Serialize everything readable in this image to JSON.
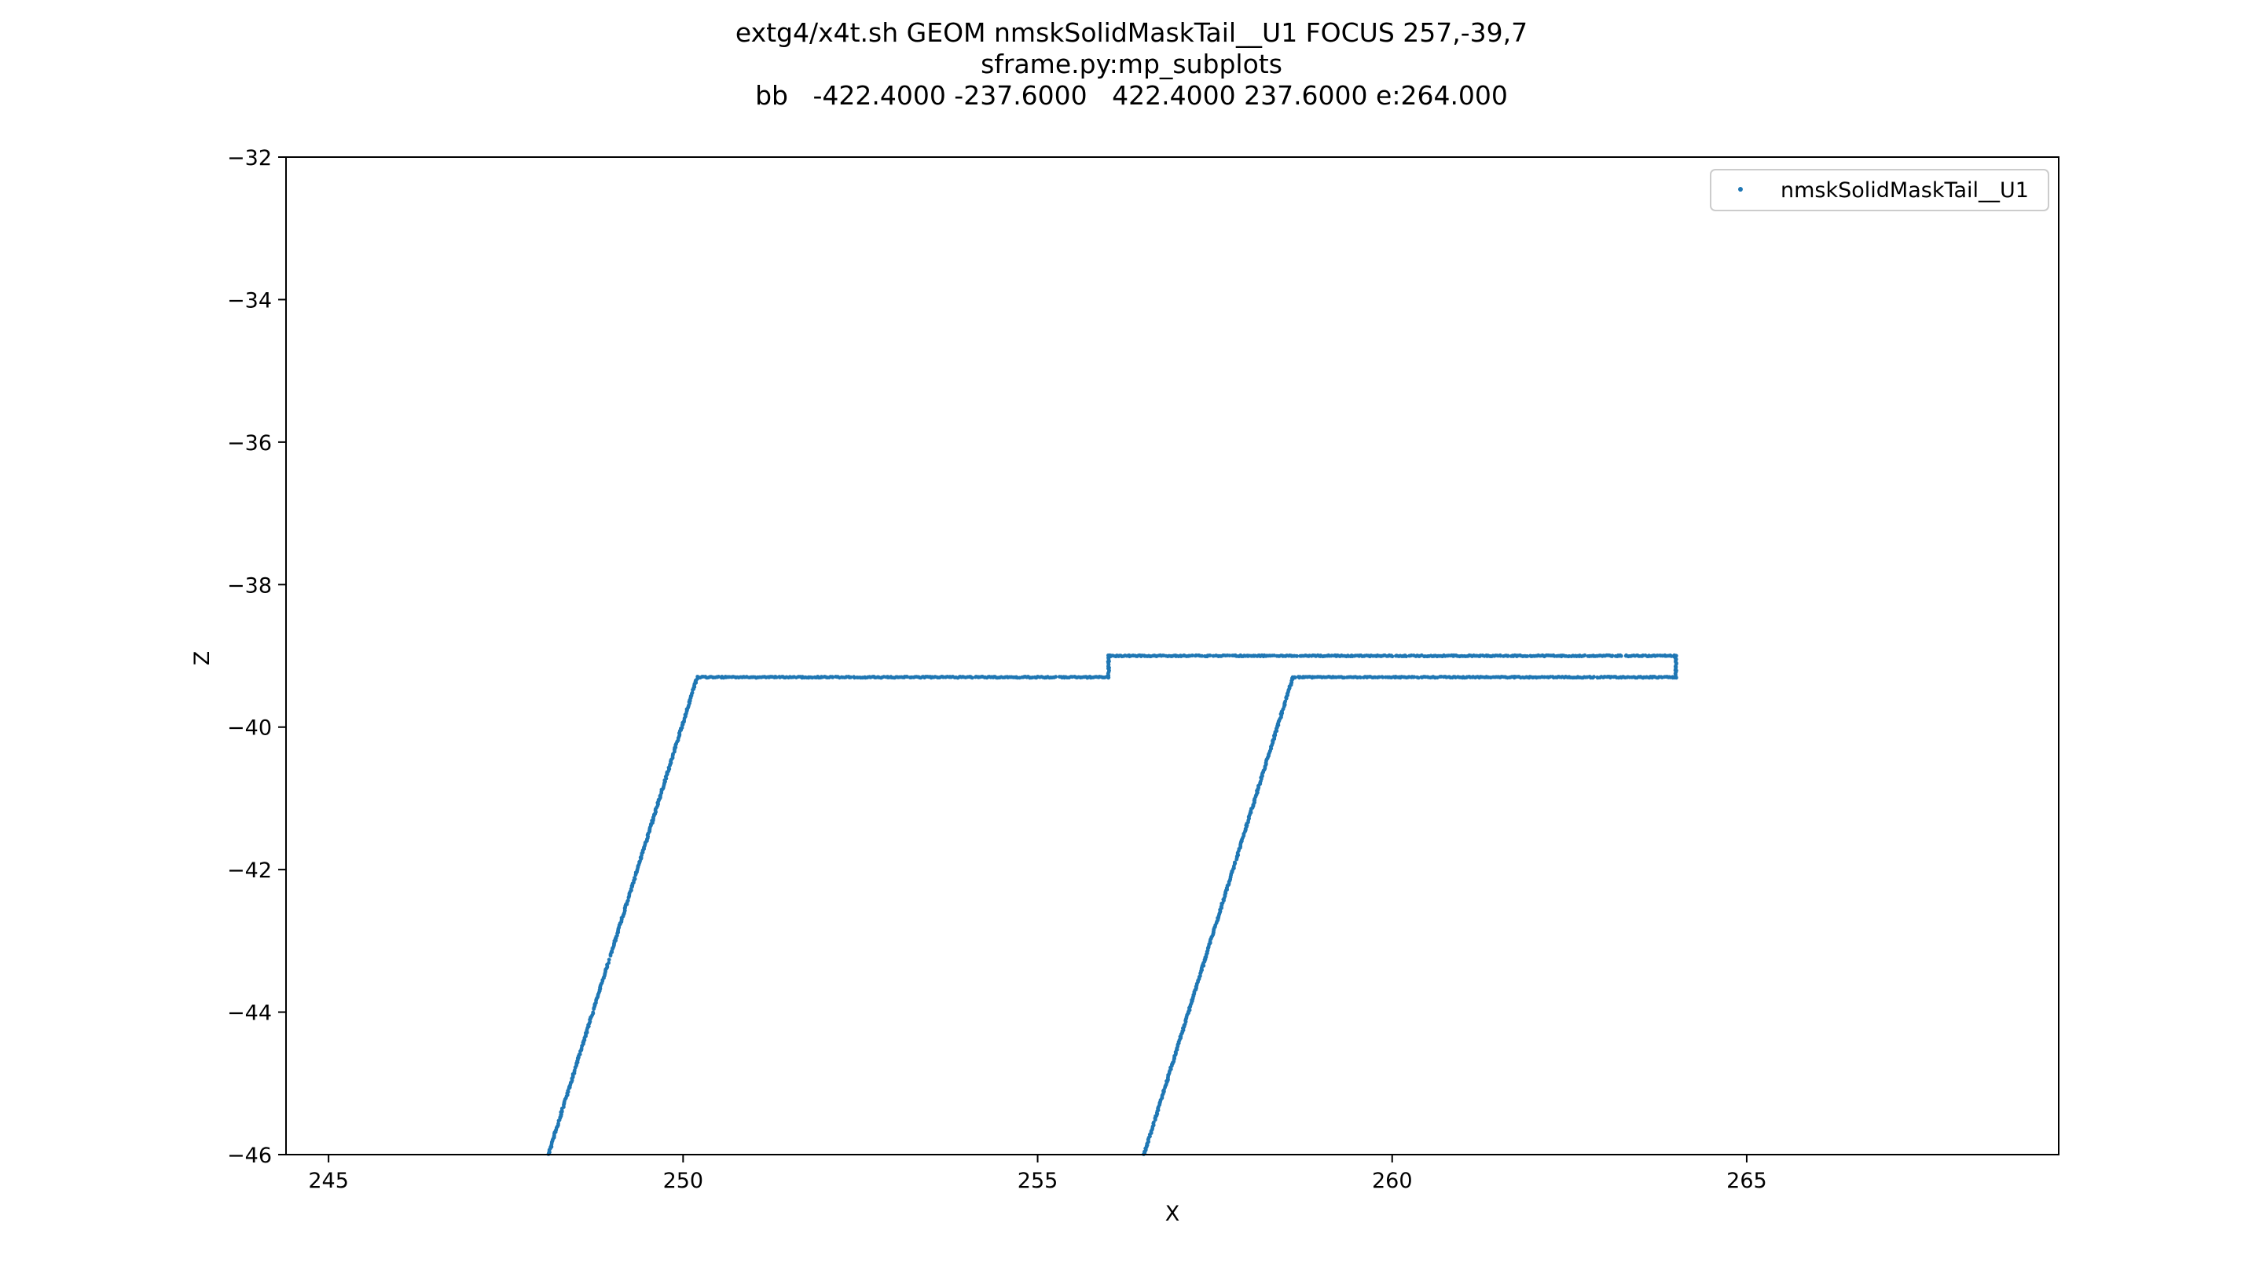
{
  "chart_data": {
    "type": "scatter",
    "title_lines": [
      "extg4/x4t.sh GEOM nmskSolidMaskTail__U1 FOCUS 257,-39,7",
      "sframe.py:mp_subplots",
      "bb   -422.4000 -237.6000   422.4000 237.6000 e:264.000"
    ],
    "xlabel": "X",
    "ylabel": "Z",
    "xlim": [
      244.4,
      269.4
    ],
    "ylim": [
      -46,
      -32
    ],
    "xticks": [
      245,
      250,
      255,
      260,
      265
    ],
    "yticks": [
      -32,
      -34,
      -36,
      -38,
      -40,
      -42,
      -44,
      -46
    ],
    "grid": false,
    "legend_position": "top-right",
    "point_color": "#1f77b4",
    "series": [
      {
        "name": "nmskSolidMaskTail__U1",
        "segments": [
          {
            "from": [
              248.1,
              -46.0
            ],
            "to": [
              250.2,
              -39.3
            ]
          },
          {
            "from": [
              250.2,
              -39.3
            ],
            "to": [
              256.0,
              -39.3
            ]
          },
          {
            "from": [
              256.0,
              -39.3
            ],
            "to": [
              256.0,
              -39.0
            ]
          },
          {
            "from": [
              256.0,
              -39.0
            ],
            "to": [
              264.0,
              -39.0
            ]
          },
          {
            "from": [
              264.0,
              -39.0
            ],
            "to": [
              264.0,
              -39.3
            ]
          },
          {
            "from": [
              264.0,
              -39.3
            ],
            "to": [
              258.6,
              -39.3
            ]
          },
          {
            "from": [
              258.6,
              -39.3
            ],
            "to": [
              256.5,
              -46.0
            ]
          }
        ]
      }
    ]
  }
}
